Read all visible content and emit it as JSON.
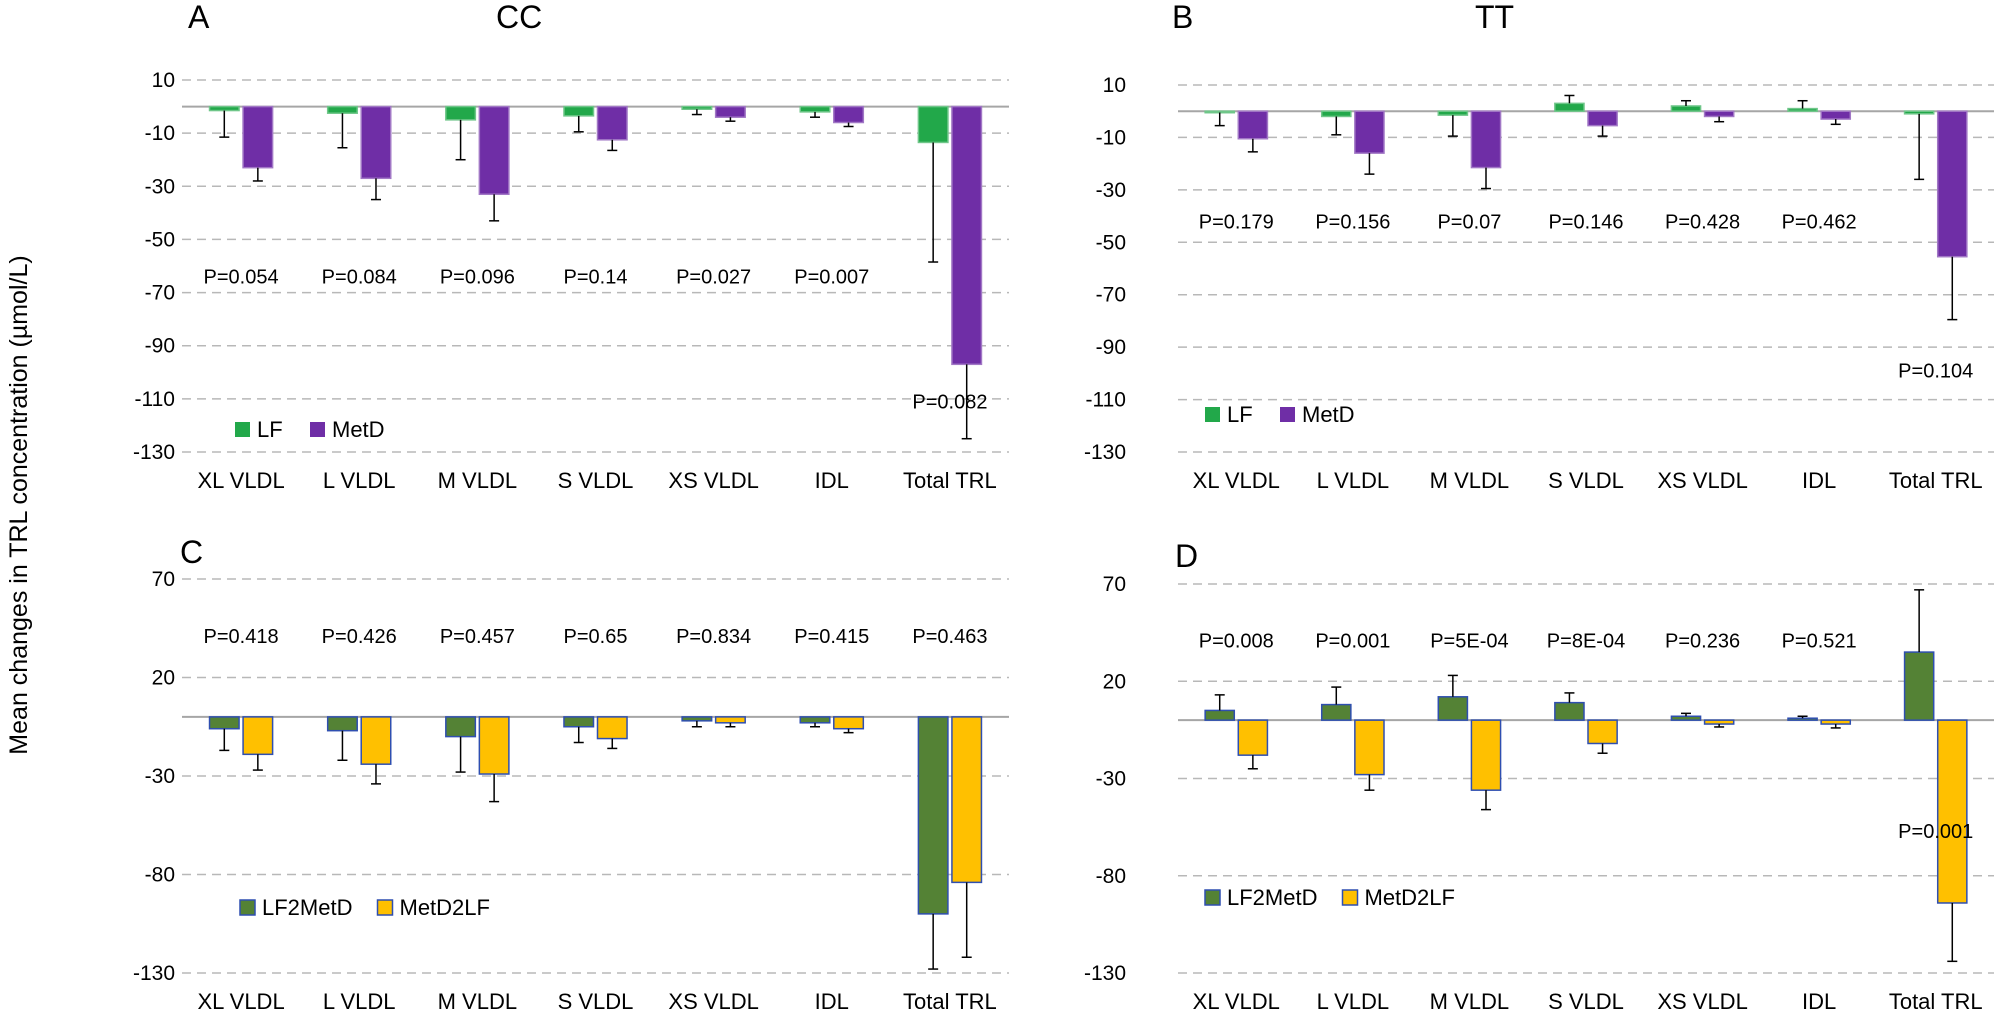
{
  "figure": {
    "ylabel": "Mean changes in TRL concentration (µmol/L)"
  },
  "colors": {
    "LF": "#22a84a",
    "MetD": "#6f2ea6",
    "LF2MetD": "#548235",
    "MetD2LF": "#ffc000",
    "bar_edge": "#2f4fb0",
    "grid": "#b8b8b8",
    "axis": "#a6a6a6"
  },
  "chart_data": [
    {
      "id": "A",
      "type": "bar",
      "letter": "A",
      "title": "CC",
      "xlabel": "",
      "ylabel": "Mean changes in TRL concentration (µmol/L)",
      "categories": [
        "XL VLDL",
        "L VLDL",
        "M VLDL",
        "S VLDL",
        "XS VLDL",
        "IDL",
        "Total TRL"
      ],
      "ylim": [
        -130,
        10
      ],
      "yticks": [
        10,
        -10,
        -30,
        -50,
        -70,
        -90,
        -110,
        -130
      ],
      "ytick_labels": [
        "10",
        "-10",
        "-30",
        "-50",
        "-70",
        "-90",
        "-110",
        "-130"
      ],
      "grid": true,
      "legend_position": "bottom-left",
      "series": [
        {
          "name": "LF",
          "color_key": "LF",
          "values": [
            -1.5,
            -2.5,
            -5,
            -3.5,
            -1,
            -2,
            -13.5
          ],
          "errors": [
            10,
            13,
            15,
            6,
            2,
            2,
            45
          ]
        },
        {
          "name": "MetD",
          "color_key": "MetD",
          "values": [
            -23,
            -27,
            -33,
            -12.5,
            -4,
            -6,
            -97
          ],
          "errors": [
            5,
            8,
            10,
            4,
            1.5,
            1.5,
            28
          ]
        }
      ],
      "pvalues": [
        "P=0.054",
        "P=0.084",
        "P=0.096",
        "P=0.14",
        "P=0.027",
        "P=0.007",
        "P=0.082"
      ],
      "pvalue_y": [
        -64,
        -64,
        -64,
        -64,
        -64,
        -64,
        -111
      ]
    },
    {
      "id": "B",
      "type": "bar",
      "letter": "B",
      "title": "TT",
      "xlabel": "",
      "ylabel": "",
      "categories": [
        "XL VLDL",
        "L VLDL",
        "M VLDL",
        "S VLDL",
        "XS VLDL",
        "IDL",
        "Total TRL"
      ],
      "ylim": [
        -130,
        10
      ],
      "yticks": [
        10,
        -10,
        -30,
        -50,
        -70,
        -90,
        -110,
        -130
      ],
      "ytick_labels": [
        "10",
        "-10",
        "-30",
        "-50",
        "-70",
        "-90",
        "-110",
        "-130"
      ],
      "grid": true,
      "legend_position": "bottom-left",
      "series": [
        {
          "name": "LF",
          "color_key": "LF",
          "values": [
            -0.5,
            -2,
            -1.5,
            3,
            2,
            1,
            -1
          ],
          "errors": [
            5,
            7,
            8,
            3,
            2,
            3,
            25
          ]
        },
        {
          "name": "MetD",
          "color_key": "MetD",
          "values": [
            -10.5,
            -16,
            -21.5,
            -5.5,
            -2,
            -3,
            -55.5
          ],
          "errors": [
            5,
            8,
            8,
            4,
            2,
            2,
            24
          ]
        }
      ],
      "pvalues": [
        "P=0.179",
        "P=0.156",
        "P=0.07",
        "P=0.146",
        "P=0.428",
        "P=0.462",
        "P=0.104"
      ],
      "pvalue_y": [
        -42,
        -42,
        -42,
        -42,
        -42,
        -42,
        -99
      ]
    },
    {
      "id": "C",
      "type": "bar",
      "letter": "C",
      "title": "",
      "xlabel": "",
      "ylabel": "",
      "categories": [
        "XL VLDL",
        "L VLDL",
        "M VLDL",
        "S VLDL",
        "XS VLDL",
        "IDL",
        "Total TRL"
      ],
      "ylim": [
        -130,
        70
      ],
      "yticks": [
        70,
        20,
        -30,
        -80,
        -130
      ],
      "ytick_labels": [
        "70",
        "20",
        "-30",
        "-80",
        "-130"
      ],
      "grid": true,
      "legend_position": "bottom-left",
      "series": [
        {
          "name": "LF2MetD",
          "color_key": "LF2MetD",
          "values": [
            -6,
            -7,
            -10,
            -5,
            -2,
            -3,
            -100
          ],
          "errors": [
            11,
            15,
            18,
            8,
            3,
            2,
            28
          ]
        },
        {
          "name": "MetD2LF",
          "color_key": "MetD2LF",
          "values": [
            -19,
            -24,
            -29,
            -11,
            -3,
            -6,
            -84
          ],
          "errors": [
            8,
            10,
            14,
            5,
            2,
            2,
            38
          ]
        }
      ],
      "pvalues": [
        "P=0.418",
        "P=0.426",
        "P=0.457",
        "P=0.65",
        "P=0.834",
        "P=0.415",
        "P=0.463"
      ],
      "pvalue_y": [
        41,
        41,
        41,
        41,
        41,
        41,
        41
      ]
    },
    {
      "id": "D",
      "type": "bar",
      "letter": "D",
      "title": "",
      "xlabel": "",
      "ylabel": "",
      "categories": [
        "XL VLDL",
        "L VLDL",
        "M VLDL",
        "S VLDL",
        "XS VLDL",
        "IDL",
        "Total TRL"
      ],
      "ylim": [
        -130,
        70
      ],
      "yticks": [
        70,
        20,
        -30,
        -80,
        -130
      ],
      "ytick_labels": [
        "70",
        "20",
        "-30",
        "-80",
        "-130"
      ],
      "grid": true,
      "legend_position": "bottom-left",
      "series": [
        {
          "name": "LF2MetD",
          "color_key": "LF2MetD",
          "values": [
            5,
            8,
            12,
            9,
            2,
            1,
            35
          ],
          "errors": [
            8,
            9,
            11,
            5,
            1.5,
            1,
            32
          ]
        },
        {
          "name": "MetD2LF",
          "color_key": "MetD2LF",
          "values": [
            -18,
            -28,
            -36,
            -12,
            -2,
            -2,
            -94
          ],
          "errors": [
            7,
            8,
            10,
            5,
            1.5,
            2,
            30
          ]
        }
      ],
      "pvalues": [
        "P=0.008",
        "P=0.001",
        "P=5E-04",
        "P=8E-04",
        "P=0.236",
        "P=0.521",
        "P=0.001"
      ],
      "pvalue_y": [
        41,
        41,
        41,
        41,
        41,
        41,
        -57
      ]
    }
  ]
}
